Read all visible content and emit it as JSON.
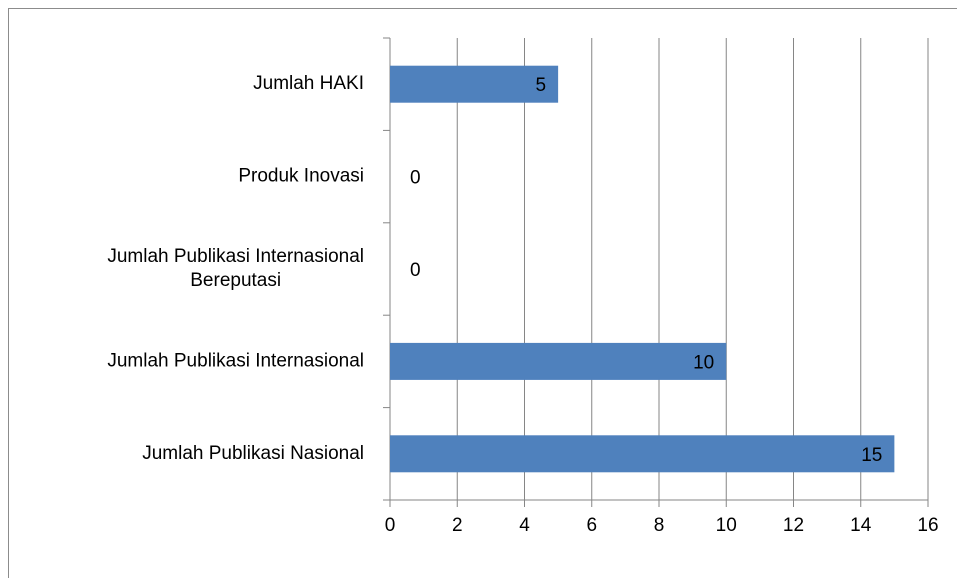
{
  "chart_data": {
    "type": "bar",
    "orientation": "horizontal",
    "categories": [
      "Jumlah HAKI",
      "Produk Inovasi",
      "Jumlah Publikasi Internasional Bereputasi",
      "Jumlah Publikasi Internasional",
      "Jumlah Publikasi Nasional"
    ],
    "values": [
      5,
      0,
      0,
      10,
      15
    ],
    "color": "#4f81bd",
    "xlim": [
      0,
      16
    ],
    "xticks": [
      0,
      2,
      4,
      6,
      8,
      10,
      12,
      14,
      16
    ],
    "grid": true
  }
}
